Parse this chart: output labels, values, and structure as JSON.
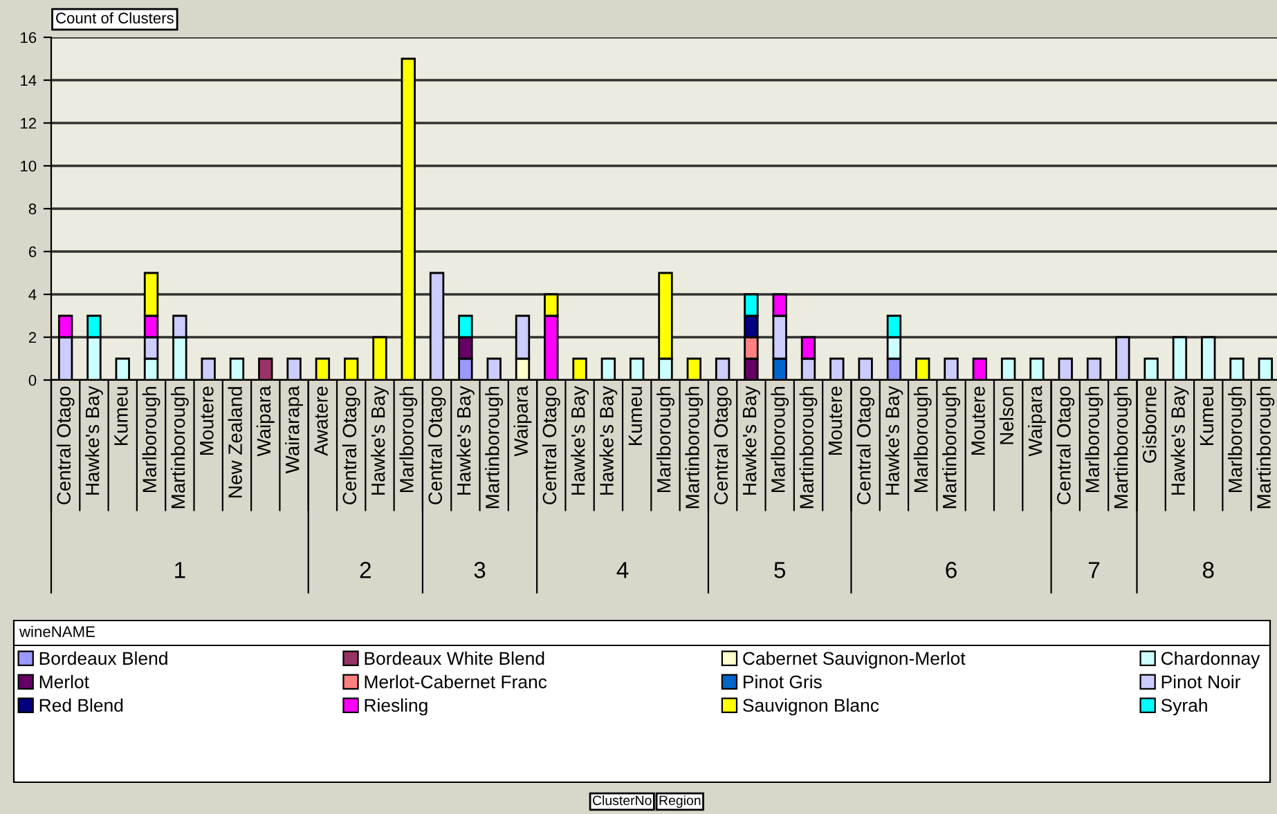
{
  "chart_data": {
    "type": "bar",
    "stacked": true,
    "ylabel": "Count of Clusters",
    "legend_title": "wineNAME",
    "legend": "bottom",
    "grid": "y",
    "ylim": [
      0,
      16
    ],
    "yticks": [
      0,
      2,
      4,
      6,
      8,
      10,
      12,
      14,
      16
    ],
    "categories": [
      "Central Otago",
      "Hawke's Bay",
      "Kumeu",
      "Marlborough",
      "Martinborough",
      "Moutere",
      "New Zealand",
      "Waipara",
      "Wairarapa",
      "Awatere",
      "Central Otago",
      "Hawke's Bay",
      "Marlborough",
      "Central Otago",
      "Hawke's Bay",
      "Martinborough",
      "Waipara",
      "Central Otago",
      "Hawke's Bay",
      "Hawke's Bay",
      "Kumeu",
      "Marlborough",
      "Martinborough",
      "Central Otago",
      "Hawke's Bay",
      "Marlborough",
      "Martinborough",
      "Moutere",
      "Central Otago",
      "Hawke's Bay",
      "Marlborough",
      "Martinborough",
      "Moutere",
      "Nelson",
      "Waipara",
      "Central Otago",
      "Marlborough",
      "Martinborough",
      "Gisborne",
      "Hawke's Bay",
      "Kumeu",
      "Marlborough",
      "Martinborough"
    ],
    "series": [
      {
        "name": "Bordeaux Blend",
        "color": "#9999ff",
        "values": [
          null,
          null,
          null,
          null,
          null,
          null,
          null,
          null,
          null,
          null,
          null,
          null,
          null,
          null,
          1,
          null,
          null,
          null,
          null,
          null,
          null,
          null,
          null,
          null,
          null,
          null,
          null,
          null,
          null,
          1,
          null,
          null,
          null,
          null,
          null,
          null,
          null,
          null,
          null,
          null,
          null,
          null,
          null
        ]
      },
      {
        "name": "Bordeaux White Blend",
        "color": "#993366",
        "values": [
          null,
          null,
          null,
          null,
          null,
          null,
          null,
          1,
          null,
          null,
          null,
          null,
          null,
          null,
          null,
          null,
          null,
          null,
          null,
          null,
          null,
          null,
          null,
          null,
          null,
          null,
          null,
          null,
          null,
          null,
          null,
          null,
          null,
          null,
          null,
          null,
          null,
          null,
          null,
          null,
          null,
          null,
          null
        ]
      },
      {
        "name": "Cabernet Sauvignon-Merlot",
        "color": "#ffffcc",
        "values": [
          null,
          null,
          null,
          null,
          null,
          null,
          null,
          null,
          null,
          null,
          null,
          null,
          null,
          null,
          null,
          null,
          1,
          null,
          null,
          null,
          null,
          null,
          null,
          null,
          null,
          null,
          null,
          null,
          null,
          null,
          null,
          null,
          null,
          null,
          null,
          null,
          null,
          null,
          null,
          null,
          null,
          null,
          null
        ]
      },
      {
        "name": "Chardonnay",
        "color": "#ccffff",
        "values": [
          null,
          2,
          1,
          1,
          2,
          null,
          1,
          null,
          null,
          null,
          null,
          null,
          null,
          null,
          null,
          null,
          null,
          null,
          null,
          1,
          1,
          1,
          null,
          null,
          null,
          null,
          null,
          null,
          null,
          1,
          null,
          null,
          null,
          1,
          1,
          null,
          null,
          null,
          1,
          2,
          2,
          1,
          1
        ]
      },
      {
        "name": "Merlot",
        "color": "#660066",
        "values": [
          null,
          null,
          null,
          null,
          null,
          null,
          null,
          null,
          null,
          null,
          null,
          null,
          null,
          null,
          1,
          null,
          null,
          null,
          null,
          null,
          null,
          null,
          null,
          null,
          1,
          null,
          null,
          null,
          null,
          null,
          null,
          null,
          null,
          null,
          null,
          null,
          null,
          null,
          null,
          null,
          null,
          null,
          null
        ]
      },
      {
        "name": "Merlot-Cabernet Franc",
        "color": "#ff8080",
        "values": [
          null,
          null,
          null,
          null,
          null,
          null,
          null,
          null,
          null,
          null,
          null,
          null,
          null,
          null,
          null,
          null,
          null,
          null,
          null,
          null,
          null,
          null,
          null,
          null,
          1,
          null,
          null,
          null,
          null,
          null,
          null,
          null,
          null,
          null,
          null,
          null,
          null,
          null,
          null,
          null,
          null,
          null,
          null
        ]
      },
      {
        "name": "Pinot Gris",
        "color": "#0066cc",
        "values": [
          null,
          null,
          null,
          null,
          null,
          null,
          null,
          null,
          null,
          null,
          null,
          null,
          null,
          null,
          null,
          null,
          null,
          null,
          null,
          null,
          null,
          null,
          null,
          null,
          null,
          1,
          null,
          null,
          null,
          null,
          null,
          null,
          null,
          null,
          null,
          null,
          null,
          null,
          null,
          null,
          null,
          null,
          null
        ]
      },
      {
        "name": "Pinot Noir",
        "color": "#ccccff",
        "values": [
          2,
          null,
          null,
          1,
          1,
          1,
          null,
          null,
          1,
          null,
          null,
          null,
          null,
          5,
          null,
          1,
          2,
          null,
          null,
          null,
          null,
          null,
          null,
          1,
          null,
          2,
          1,
          1,
          1,
          null,
          null,
          1,
          null,
          null,
          null,
          1,
          1,
          2,
          null,
          null,
          null,
          null,
          null
        ]
      },
      {
        "name": "Red Blend",
        "color": "#000080",
        "values": [
          null,
          null,
          null,
          null,
          null,
          null,
          null,
          null,
          null,
          null,
          null,
          null,
          null,
          null,
          null,
          null,
          null,
          null,
          null,
          null,
          null,
          null,
          null,
          null,
          1,
          null,
          null,
          null,
          null,
          null,
          null,
          null,
          null,
          null,
          null,
          null,
          null,
          null,
          null,
          null,
          null,
          null,
          null
        ]
      },
      {
        "name": "Riesling",
        "color": "#ff00ff",
        "values": [
          1,
          null,
          null,
          1,
          null,
          null,
          null,
          null,
          null,
          null,
          null,
          null,
          null,
          null,
          null,
          null,
          null,
          3,
          null,
          null,
          null,
          null,
          null,
          null,
          null,
          1,
          1,
          null,
          null,
          null,
          null,
          null,
          1,
          null,
          null,
          null,
          null,
          null,
          null,
          null,
          null,
          null,
          null
        ]
      },
      {
        "name": "Sauvignon Blanc",
        "color": "#ffff00",
        "values": [
          null,
          null,
          null,
          2,
          null,
          null,
          null,
          null,
          null,
          1,
          1,
          2,
          15,
          null,
          null,
          null,
          null,
          1,
          1,
          null,
          null,
          4,
          1,
          null,
          null,
          null,
          null,
          null,
          null,
          null,
          1,
          null,
          null,
          null,
          null,
          null,
          null,
          null,
          null,
          null,
          null,
          null,
          null
        ]
      },
      {
        "name": "Syrah",
        "color": "#00ffff",
        "values": [
          null,
          1,
          null,
          null,
          null,
          null,
          null,
          null,
          null,
          null,
          null,
          null,
          null,
          null,
          1,
          null,
          null,
          null,
          null,
          null,
          null,
          null,
          null,
          null,
          1,
          null,
          null,
          null,
          null,
          1,
          null,
          null,
          null,
          null,
          null,
          null,
          null,
          null,
          null,
          null,
          null,
          null,
          null
        ]
      }
    ],
    "annotations": [
      "1",
      "2",
      "3",
      "4",
      "5",
      "6",
      "7",
      "8",
      "ClusterNo",
      "Region"
    ]
  }
}
